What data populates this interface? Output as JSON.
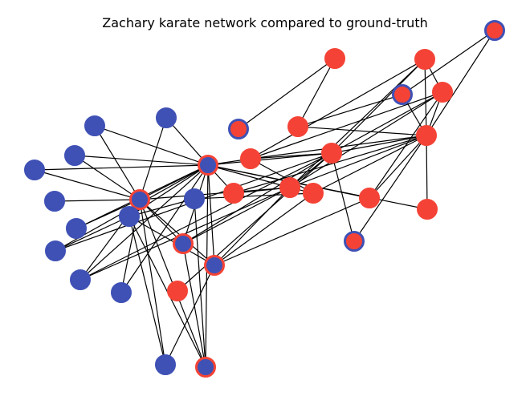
{
  "title": "Zachary karate network compared to ground-truth",
  "colors": {
    "blue": "#3f51b5",
    "red": "#f44336",
    "edge": "#000000",
    "background": "#ffffff"
  },
  "nodes": [
    {
      "id": 1,
      "fill": "red",
      "ring": "blue"
    },
    {
      "id": 2,
      "fill": "red",
      "ring": "red"
    },
    {
      "id": 3,
      "fill": "red",
      "ring": "red"
    },
    {
      "id": 4,
      "fill": "red",
      "ring": "blue"
    },
    {
      "id": 5,
      "fill": "red",
      "ring": "red"
    },
    {
      "id": 6,
      "fill": "red",
      "ring": "red"
    },
    {
      "id": 7,
      "fill": "red",
      "ring": "red"
    },
    {
      "id": 8,
      "fill": "red",
      "ring": "blue"
    },
    {
      "id": 9,
      "fill": "red",
      "ring": "red"
    },
    {
      "id": 10,
      "fill": "red",
      "ring": "red"
    },
    {
      "id": 11,
      "fill": "red",
      "ring": "red"
    },
    {
      "id": 12,
      "fill": "red",
      "ring": "red"
    },
    {
      "id": 13,
      "fill": "red",
      "ring": "red"
    },
    {
      "id": 14,
      "fill": "red",
      "ring": "red"
    },
    {
      "id": 15,
      "fill": "red",
      "ring": "red"
    },
    {
      "id": 16,
      "fill": "red",
      "ring": "blue"
    },
    {
      "id": 17,
      "fill": "red",
      "ring": "red"
    },
    {
      "id": 18,
      "fill": "blue",
      "ring": "red"
    },
    {
      "id": 19,
      "fill": "blue",
      "ring": "blue"
    },
    {
      "id": 20,
      "fill": "blue",
      "ring": "blue"
    },
    {
      "id": 21,
      "fill": "blue",
      "ring": "blue"
    },
    {
      "id": 22,
      "fill": "blue",
      "ring": "blue"
    },
    {
      "id": 23,
      "fill": "blue",
      "ring": "blue"
    },
    {
      "id": 24,
      "fill": "blue",
      "ring": "blue"
    },
    {
      "id": 25,
      "fill": "blue",
      "ring": "blue"
    },
    {
      "id": 26,
      "fill": "blue",
      "ring": "blue"
    },
    {
      "id": 27,
      "fill": "blue",
      "ring": "blue"
    },
    {
      "id": 28,
      "fill": "blue",
      "ring": "blue"
    },
    {
      "id": 29,
      "fill": "blue",
      "ring": "red"
    },
    {
      "id": 30,
      "fill": "blue",
      "ring": "red"
    },
    {
      "id": 31,
      "fill": "blue",
      "ring": "red"
    },
    {
      "id": 32,
      "fill": "blue",
      "ring": "red"
    },
    {
      "id": 33,
      "fill": "blue",
      "ring": "blue"
    },
    {
      "id": 34,
      "fill": "blue",
      "ring": "blue"
    }
  ],
  "edges": [
    [
      1,
      4
    ],
    [
      1,
      6
    ],
    [
      4,
      6
    ],
    [
      4,
      7
    ],
    [
      7,
      5
    ],
    [
      6,
      7
    ],
    [
      6,
      3
    ],
    [
      5,
      8
    ],
    [
      2,
      6
    ],
    [
      15,
      6
    ],
    [
      14,
      6
    ],
    [
      13,
      6
    ],
    [
      9,
      6
    ],
    [
      10,
      6
    ],
    [
      11,
      6
    ],
    [
      12,
      6
    ],
    [
      16,
      6
    ],
    [
      2,
      3
    ],
    [
      3,
      13
    ],
    [
      3,
      9
    ],
    [
      3,
      10
    ],
    [
      3,
      11
    ],
    [
      2,
      11
    ],
    [
      2,
      9
    ],
    [
      2,
      10
    ],
    [
      12,
      11
    ],
    [
      11,
      9
    ],
    [
      11,
      14
    ],
    [
      10,
      9
    ],
    [
      10,
      12
    ],
    [
      16,
      9
    ],
    [
      9,
      17
    ],
    [
      9,
      25
    ],
    [
      9,
      26
    ],
    [
      9,
      29
    ],
    [
      9,
      30
    ],
    [
      11,
      18
    ],
    [
      11,
      26
    ],
    [
      11,
      29
    ],
    [
      11,
      31
    ],
    [
      11,
      30
    ],
    [
      10,
      29
    ],
    [
      14,
      29
    ],
    [
      13,
      29
    ],
    [
      13,
      31
    ],
    [
      12,
      31
    ],
    [
      15,
      29
    ],
    [
      18,
      29
    ],
    [
      18,
      30
    ],
    [
      18,
      31
    ],
    [
      18,
      34
    ],
    [
      18,
      32
    ],
    [
      18,
      23
    ],
    [
      18,
      28
    ],
    [
      18,
      26
    ],
    [
      18,
      19
    ],
    [
      18,
      20
    ],
    [
      18,
      21
    ],
    [
      18,
      22
    ],
    [
      18,
      24
    ],
    [
      18,
      27
    ],
    [
      29,
      19
    ],
    [
      29,
      20
    ],
    [
      29,
      21
    ],
    [
      29,
      22
    ],
    [
      29,
      24
    ],
    [
      29,
      25
    ],
    [
      29,
      26
    ],
    [
      29,
      27
    ],
    [
      29,
      30
    ],
    [
      29,
      31
    ],
    [
      29,
      32
    ],
    [
      29,
      34
    ],
    [
      28,
      34
    ],
    [
      25,
      34
    ],
    [
      34,
      33
    ],
    [
      34,
      32
    ],
    [
      30,
      32
    ],
    [
      32,
      33
    ],
    [
      31,
      34
    ],
    [
      31,
      28
    ],
    [
      12,
      33
    ]
  ]
}
